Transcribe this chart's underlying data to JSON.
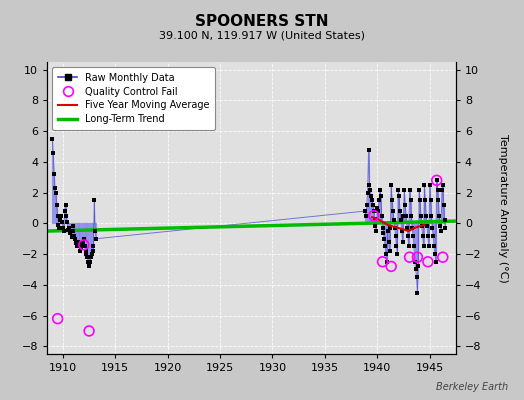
{
  "title": "SPOONERS STN",
  "subtitle": "39.100 N, 119.917 W (United States)",
  "ylabel": "Temperature Anomaly (°C)",
  "watermark": "Berkeley Earth",
  "xlim": [
    1908.5,
    1947.5
  ],
  "ylim": [
    -8.5,
    10.5
  ],
  "yticks": [
    -8,
    -6,
    -4,
    -2,
    0,
    2,
    4,
    6,
    8,
    10
  ],
  "xticks": [
    1910,
    1915,
    1920,
    1925,
    1930,
    1935,
    1940,
    1945
  ],
  "background_color": "#c8c8c8",
  "plot_bg_color": "#e0e0e0",
  "raw_line_color": "#4444cc",
  "raw_line_color_light": "#8888ee",
  "raw_dot_color": "#000000",
  "qc_color": "#ff00ff",
  "ma_color": "#dd0000",
  "trend_color": "#00bb00",
  "raw_data": [
    [
      1909.0,
      5.5
    ],
    [
      1909.08,
      4.6
    ],
    [
      1909.17,
      3.2
    ],
    [
      1909.25,
      2.3
    ],
    [
      1909.33,
      2.0
    ],
    [
      1909.42,
      1.2
    ],
    [
      1909.5,
      0.5
    ],
    [
      1909.58,
      -0.1
    ],
    [
      1909.67,
      -0.3
    ],
    [
      1909.75,
      0.2
    ],
    [
      1909.83,
      0.5
    ],
    [
      1909.92,
      0.1
    ],
    [
      1910.0,
      -0.3
    ],
    [
      1910.08,
      -0.5
    ],
    [
      1910.17,
      0.8
    ],
    [
      1910.25,
      1.2
    ],
    [
      1910.33,
      0.5
    ],
    [
      1910.42,
      0.1
    ],
    [
      1910.5,
      -0.4
    ],
    [
      1910.58,
      -0.3
    ],
    [
      1910.67,
      -0.6
    ],
    [
      1910.75,
      -0.5
    ],
    [
      1910.83,
      -0.9
    ],
    [
      1910.92,
      -0.5
    ],
    [
      1911.0,
      -0.2
    ],
    [
      1911.08,
      -0.8
    ],
    [
      1911.17,
      -1.0
    ],
    [
      1911.25,
      -1.3
    ],
    [
      1911.33,
      -1.5
    ],
    [
      1911.42,
      -1.2
    ],
    [
      1911.5,
      -1.5
    ],
    [
      1911.58,
      -1.3
    ],
    [
      1911.67,
      -1.8
    ],
    [
      1911.75,
      -1.6
    ],
    [
      1911.83,
      -1.4
    ],
    [
      1911.92,
      -1.2
    ],
    [
      1912.0,
      -1.0
    ],
    [
      1912.08,
      -1.5
    ],
    [
      1912.17,
      -1.8
    ],
    [
      1912.25,
      -2.0
    ],
    [
      1912.33,
      -2.2
    ],
    [
      1912.42,
      -2.5
    ],
    [
      1912.5,
      -2.8
    ],
    [
      1912.58,
      -2.5
    ],
    [
      1912.67,
      -2.2
    ],
    [
      1912.75,
      -2.0
    ],
    [
      1912.83,
      -1.8
    ],
    [
      1912.92,
      -1.5
    ],
    [
      1913.0,
      1.5
    ],
    [
      1913.08,
      -0.5
    ],
    [
      1913.17,
      -1.0
    ],
    [
      1938.83,
      0.8
    ],
    [
      1938.92,
      0.5
    ],
    [
      1939.0,
      1.2
    ],
    [
      1939.08,
      2.0
    ],
    [
      1939.17,
      4.8
    ],
    [
      1939.25,
      2.5
    ],
    [
      1939.33,
      2.2
    ],
    [
      1939.42,
      1.8
    ],
    [
      1939.5,
      1.5
    ],
    [
      1939.58,
      1.2
    ],
    [
      1939.67,
      0.8
    ],
    [
      1939.75,
      0.3
    ],
    [
      1939.83,
      -0.2
    ],
    [
      1939.92,
      -0.5
    ],
    [
      1940.0,
      1.0
    ],
    [
      1940.08,
      0.8
    ],
    [
      1940.17,
      1.5
    ],
    [
      1940.25,
      2.2
    ],
    [
      1940.33,
      1.8
    ],
    [
      1940.42,
      0.5
    ],
    [
      1940.5,
      -0.3
    ],
    [
      1940.58,
      -0.6
    ],
    [
      1940.67,
      -1.0
    ],
    [
      1940.75,
      -1.5
    ],
    [
      1940.83,
      -2.0
    ],
    [
      1940.92,
      -2.5
    ],
    [
      1941.0,
      -0.5
    ],
    [
      1941.08,
      -1.2
    ],
    [
      1941.17,
      -1.8
    ],
    [
      1941.25,
      -0.3
    ],
    [
      1941.33,
      2.5
    ],
    [
      1941.42,
      1.5
    ],
    [
      1941.5,
      0.8
    ],
    [
      1941.58,
      0.2
    ],
    [
      1941.67,
      -0.3
    ],
    [
      1941.75,
      -0.8
    ],
    [
      1941.83,
      -1.5
    ],
    [
      1941.92,
      -2.0
    ],
    [
      1942.0,
      2.2
    ],
    [
      1942.08,
      1.8
    ],
    [
      1942.17,
      0.8
    ],
    [
      1942.25,
      0.2
    ],
    [
      1942.33,
      -0.5
    ],
    [
      1942.42,
      -1.2
    ],
    [
      1942.5,
      0.5
    ],
    [
      1942.58,
      2.2
    ],
    [
      1942.67,
      1.2
    ],
    [
      1942.75,
      0.5
    ],
    [
      1942.83,
      -0.3
    ],
    [
      1942.92,
      -0.8
    ],
    [
      1943.0,
      -1.5
    ],
    [
      1943.08,
      2.2
    ],
    [
      1943.17,
      1.5
    ],
    [
      1943.25,
      0.5
    ],
    [
      1943.33,
      -0.3
    ],
    [
      1943.42,
      -0.8
    ],
    [
      1943.5,
      -1.5
    ],
    [
      1943.58,
      -2.5
    ],
    [
      1943.67,
      -3.0
    ],
    [
      1943.75,
      -3.5
    ],
    [
      1943.83,
      -4.5
    ],
    [
      1943.92,
      -2.8
    ],
    [
      1944.0,
      2.2
    ],
    [
      1944.08,
      1.5
    ],
    [
      1944.17,
      0.5
    ],
    [
      1944.25,
      -0.2
    ],
    [
      1944.33,
      -0.8
    ],
    [
      1944.42,
      -1.5
    ],
    [
      1944.5,
      2.5
    ],
    [
      1944.58,
      1.5
    ],
    [
      1944.67,
      0.5
    ],
    [
      1944.75,
      -0.2
    ],
    [
      1944.83,
      -0.8
    ],
    [
      1944.92,
      -1.5
    ],
    [
      1945.0,
      2.5
    ],
    [
      1945.08,
      1.5
    ],
    [
      1945.17,
      0.5
    ],
    [
      1945.25,
      -0.3
    ],
    [
      1945.33,
      -0.8
    ],
    [
      1945.42,
      -1.5
    ],
    [
      1945.5,
      -2.0
    ],
    [
      1945.58,
      -2.5
    ],
    [
      1945.67,
      2.8
    ],
    [
      1945.75,
      2.2
    ],
    [
      1945.83,
      1.5
    ],
    [
      1945.92,
      0.5
    ],
    [
      1946.0,
      -0.2
    ],
    [
      1946.08,
      -0.5
    ],
    [
      1946.17,
      2.2
    ],
    [
      1946.25,
      2.5
    ],
    [
      1946.33,
      1.2
    ],
    [
      1946.42,
      0.2
    ],
    [
      1946.5,
      -0.3
    ]
  ],
  "qc_fail_points": [
    [
      1909.5,
      -6.2
    ],
    [
      1912.5,
      -7.0
    ],
    [
      1912.0,
      -1.4
    ],
    [
      1939.67,
      0.5
    ],
    [
      1940.5,
      -2.5
    ],
    [
      1941.33,
      -2.8
    ],
    [
      1943.08,
      -2.2
    ],
    [
      1943.83,
      -2.2
    ],
    [
      1944.83,
      -2.5
    ],
    [
      1945.67,
      2.8
    ],
    [
      1946.25,
      -2.2
    ]
  ],
  "five_year_ma": [
    [
      1939.5,
      0.4
    ],
    [
      1940.0,
      0.3
    ],
    [
      1940.5,
      0.1
    ],
    [
      1941.0,
      -0.1
    ],
    [
      1941.5,
      -0.2
    ],
    [
      1942.0,
      -0.3
    ],
    [
      1942.5,
      -0.4
    ],
    [
      1943.0,
      -0.5
    ],
    [
      1943.5,
      -0.3
    ],
    [
      1944.0,
      -0.2
    ],
    [
      1944.5,
      -0.1
    ]
  ],
  "trend_x": [
    1908.5,
    1947.5
  ],
  "trend_y": [
    -0.5,
    0.15
  ]
}
